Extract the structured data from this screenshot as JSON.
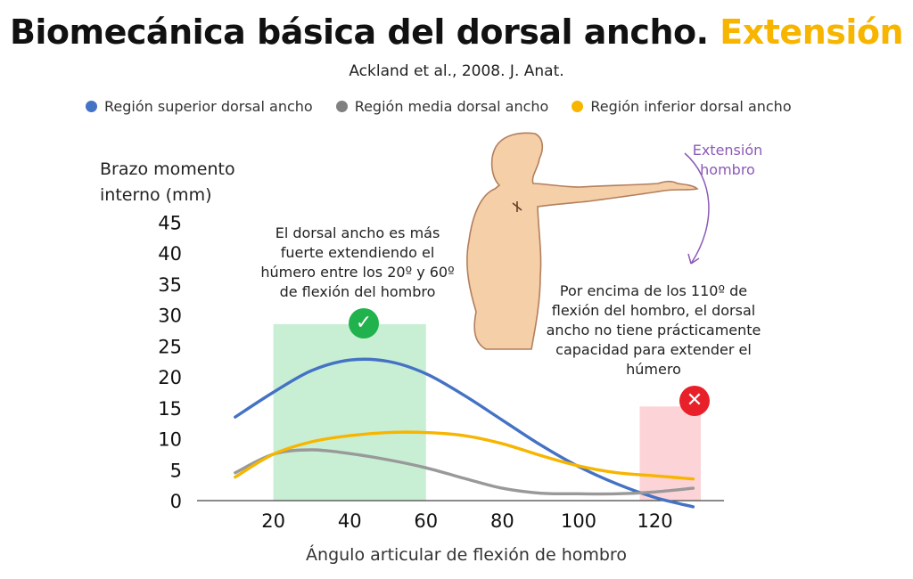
{
  "title": {
    "main": "Biomecánica básica del dorsal ancho.",
    "accent": "Extensión"
  },
  "subtitle": "Ackland et al., 2008. J. Anat.",
  "colors": {
    "accent": "#f7b500",
    "good": "#20b24c",
    "bad": "#e8202a",
    "extension": "#8b5ab5"
  },
  "annotations": {
    "good": "El dorsal ancho es más fuerte extendiendo el húmero entre los 20º y 60º de flexión del hombro",
    "bad": "Por encima de los 110º de flexión del hombro, el dorsal ancho no tiene prácticamente capacidad para extender el húmero",
    "extension": "Extensión hombro",
    "good_icon": "✓",
    "bad_icon": "✕"
  },
  "chart_data": {
    "type": "line",
    "xlabel": "Ángulo articular de flexión de hombro",
    "ylabel": "Brazo momento interno (mm)",
    "xlim": [
      0,
      130
    ],
    "ylim": [
      0,
      45
    ],
    "xticks": [
      20,
      40,
      60,
      80,
      100,
      120
    ],
    "yticks": [
      0,
      5,
      10,
      15,
      20,
      25,
      30,
      35,
      40,
      45
    ],
    "legend_position": "top",
    "grid": false,
    "series": [
      {
        "name": "Región superior dorsal ancho",
        "color": "#4472c4",
        "x": [
          10,
          20,
          30,
          40,
          50,
          60,
          70,
          80,
          90,
          100,
          110,
          120,
          130
        ],
        "y": [
          13.5,
          17.5,
          21,
          22.7,
          22.5,
          20.5,
          17,
          13,
          9,
          5.5,
          2.7,
          0.5,
          -1
        ]
      },
      {
        "name": "Región media dorsal ancho",
        "color": "#999999",
        "x": [
          10,
          20,
          30,
          40,
          50,
          60,
          70,
          80,
          90,
          100,
          110,
          120,
          130
        ],
        "y": [
          4.5,
          7.5,
          8.2,
          7.6,
          6.6,
          5.3,
          3.6,
          2,
          1.2,
          1.1,
          1.1,
          1.4,
          2
        ]
      },
      {
        "name": "Región inferior dorsal ancho",
        "color": "#f7b500",
        "x": [
          10,
          20,
          30,
          40,
          50,
          60,
          70,
          80,
          90,
          100,
          110,
          120,
          130
        ],
        "y": [
          3.8,
          7.5,
          9.5,
          10.5,
          11,
          11,
          10.5,
          9.2,
          7.3,
          5.6,
          4.5,
          4,
          3.5
        ]
      }
    ],
    "highlight_regions": [
      {
        "label": "good",
        "x": [
          20,
          60
        ],
        "y": [
          0,
          28.5
        ],
        "color": "#c8efd4"
      },
      {
        "label": "bad",
        "x": [
          116,
          132
        ],
        "y": [
          0,
          15.2
        ],
        "color": "#fcd3d6"
      }
    ]
  }
}
